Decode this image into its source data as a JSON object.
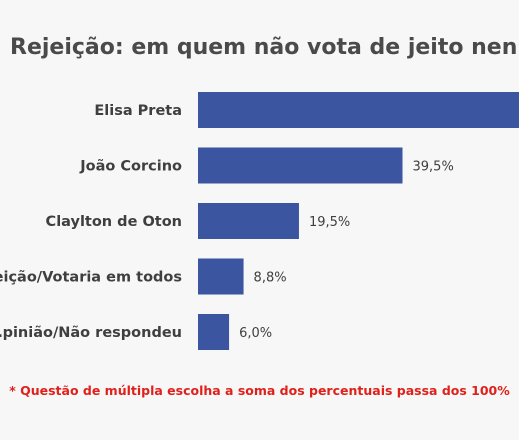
{
  "chart_data": {
    "type": "bar",
    "orientation": "horizontal",
    "title": "Rejeição: em quem não vota de jeito nenhum",
    "categories": [
      "Elisa Preta",
      "João Corcino",
      "Claylton de Oton",
      "…eição/Votaria em todos",
      "…pinião/Não respondeu"
    ],
    "values": [
      62.0,
      39.5,
      19.5,
      8.8,
      6.0
    ],
    "value_labels": [
      "",
      "39,5%",
      "19,5%",
      "8,8%",
      "6,0%"
    ],
    "xlim": [
      0,
      62
    ],
    "grid": false,
    "legend": "none",
    "bar_color": "#3b55a0",
    "footnote": "* Questão de múltipla escolha a soma dos percentuais passa dos 100%"
  }
}
